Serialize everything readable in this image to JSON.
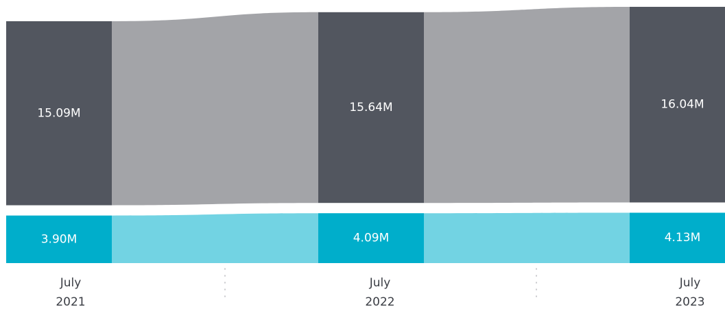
{
  "chart_data": {
    "type": "ribbon",
    "categories": [
      {
        "line1": "July",
        "line2": "2021"
      },
      {
        "line1": "July",
        "line2": "2022"
      },
      {
        "line1": "July",
        "line2": "2023"
      }
    ],
    "series": [
      {
        "values": [
          15.09,
          15.64,
          16.04
        ],
        "labels": [
          "15.09M",
          "15.64M",
          "16.04M"
        ],
        "color": "#52565f",
        "ribbon_color": "#a3a4a8"
      },
      {
        "values": [
          3.9,
          4.09,
          4.13
        ],
        "labels": [
          "3.90M",
          "4.09M",
          "4.13M"
        ],
        "color": "#00aecb",
        "ribbon_color": "#72d3e3"
      }
    ],
    "stacking": "top series stacked above bottom series, with gap",
    "grid": false,
    "legend": "none"
  }
}
